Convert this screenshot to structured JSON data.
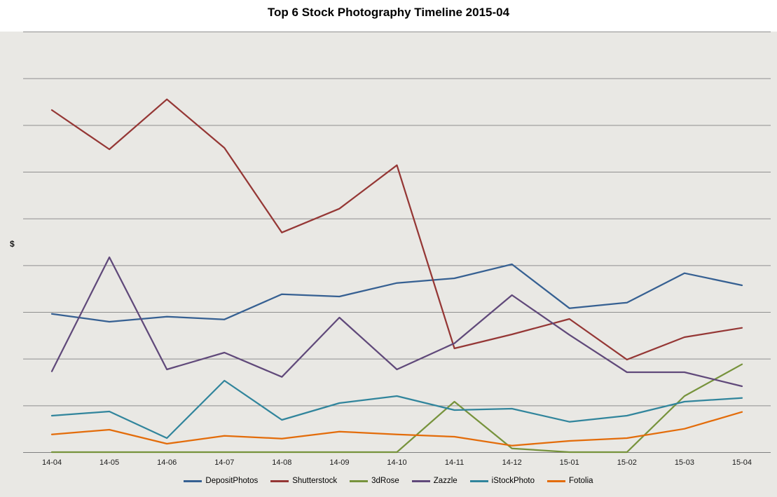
{
  "title": "Top 6 Stock Photography Timeline 2015-04",
  "y_axis_label": "$",
  "chart_data": {
    "type": "line",
    "title": "Top 6 Stock Photography Timeline 2015-04",
    "xlabel": "",
    "ylabel": "$",
    "x": [
      "14-04",
      "14-05",
      "14-06",
      "14-07",
      "14-08",
      "14-09",
      "14-10",
      "14-11",
      "14-12",
      "15-01",
      "15-02",
      "15-03",
      "15-04"
    ],
    "series": [
      {
        "name": "DepositPhotos",
        "color": "#366092",
        "values": [
          29.6,
          27.9,
          29.0,
          28.4,
          33.8,
          33.3,
          36.2,
          37.2,
          40.2,
          30.8,
          32.0,
          38.3,
          35.7
        ]
      },
      {
        "name": "Shutterstock",
        "color": "#953735",
        "values": [
          73.2,
          64.8,
          75.5,
          65.1,
          47.0,
          52.1,
          61.4,
          22.2,
          25.2,
          28.5,
          19.8,
          24.6,
          26.6
        ]
      },
      {
        "name": "3dRose",
        "color": "#77933C",
        "values": [
          0,
          0,
          0,
          0,
          0,
          0,
          0,
          10.8,
          0.8,
          0,
          0,
          12.0,
          18.8
        ]
      },
      {
        "name": "Zazzle",
        "color": "#60497A",
        "values": [
          17.3,
          41.7,
          17.7,
          21.3,
          16.1,
          28.8,
          17.7,
          23.3,
          33.6,
          25.1,
          17.1,
          17.1,
          14.1
        ]
      },
      {
        "name": "iStockPhoto",
        "color": "#31859C",
        "values": [
          7.8,
          8.7,
          3.0,
          15.3,
          6.9,
          10.5,
          12.0,
          9.0,
          9.3,
          6.5,
          7.8,
          10.8,
          11.6
        ]
      },
      {
        "name": "Fotolia",
        "color": "#E36C0A",
        "values": [
          3.8,
          4.8,
          1.8,
          3.5,
          2.9,
          4.4,
          3.8,
          3.3,
          1.4,
          2.4,
          3.0,
          5.0,
          8.6
        ]
      }
    ],
    "ylim": [
      0,
      90
    ],
    "gridline_step": 10,
    "y_tick_labels_visible": false,
    "grid": true,
    "legend_position": "bottom"
  }
}
